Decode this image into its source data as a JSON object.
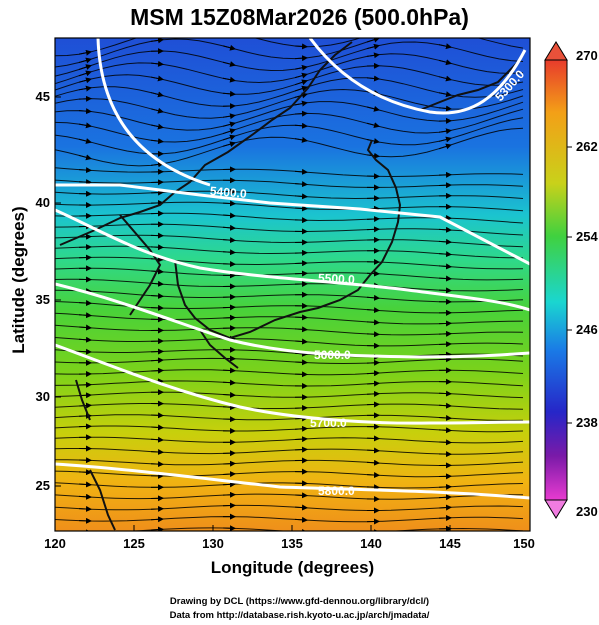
{
  "title": "MSM 15Z08Mar2026 (500.0hPa)",
  "axes": {
    "xlabel": "Longitude (degrees)",
    "ylabel": "Latitude  (degrees)",
    "xticks": [
      "120",
      "125",
      "130",
      "135",
      "140",
      "145",
      "150"
    ],
    "yticks": [
      "45",
      "40",
      "35",
      "30",
      "25"
    ]
  },
  "colorbar": {
    "ticks": [
      "270",
      "262",
      "254",
      "246",
      "238",
      "230"
    ]
  },
  "contours": [
    {
      "label": "5400.0"
    },
    {
      "label": "5500.0"
    },
    {
      "label": "5600.0"
    },
    {
      "label": "5700.0"
    },
    {
      "label": "5800.0"
    },
    {
      "label": "5300.0"
    }
  ],
  "credits": [
    "Drawing by DCL (https://www.gfd-dennou.org/library/dcl/)",
    "Data from http://database.rish.kyoto-u.ac.jp/arch/jmadata/"
  ],
  "chart_data": {
    "type": "heatmap",
    "title": "MSM 15Z08Mar2026 (500.0hPa)",
    "xlabel": "Longitude (degrees)",
    "ylabel": "Latitude  (degrees)",
    "xlim": [
      120,
      150
    ],
    "ylim": [
      22.4,
      47.6
    ],
    "colorbar_range": [
      230,
      270
    ],
    "contour_levels": [
      5300,
      5400,
      5500,
      5600,
      5700,
      5800
    ],
    "overlay": "wind streamlines with arrows, coastlines"
  }
}
